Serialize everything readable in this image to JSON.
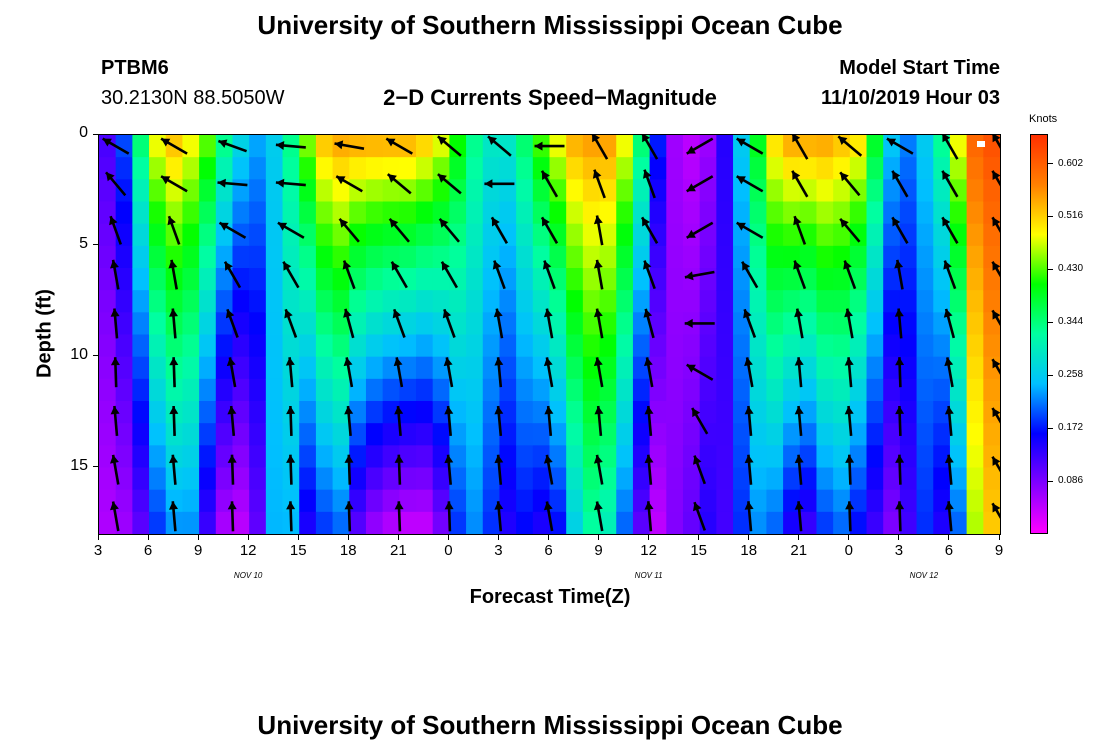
{
  "header": {
    "title": "University of Southern Mississippi Ocean Cube",
    "footer_title": "University of Southern Mississippi Ocean Cube",
    "station": "PTBM6",
    "location": "30.2130N 88.5050W",
    "subtitle": "2−D Currents Speed−Magnitude",
    "model_label": "Model Start Time",
    "model_time": "11/10/2019 Hour 03"
  },
  "chart_data": {
    "type": "heatmap",
    "title": "2−D Currents Speed−Magnitude",
    "xlabel": "Forecast Time(Z)",
    "ylabel": "Depth (ft)",
    "x_ticks": [
      "3",
      "6",
      "9",
      "12",
      "15",
      "18",
      "21",
      "0",
      "3",
      "6",
      "9",
      "12",
      "15",
      "18",
      "21",
      "0",
      "3",
      "6",
      "9"
    ],
    "x_tick_hours": [
      0,
      3,
      6,
      9,
      12,
      15,
      18,
      21,
      24,
      27,
      30,
      33,
      36,
      39,
      42,
      45,
      48,
      51,
      54
    ],
    "date_labels": [
      {
        "label": "NOV 10",
        "hour": 9
      },
      {
        "label": "NOV 11",
        "hour": 33
      },
      {
        "label": "NOV 12",
        "hour": 49.5
      }
    ],
    "xlim_hours": [
      0,
      54
    ],
    "y_ticks": [
      "0",
      "5",
      "10",
      "15"
    ],
    "y_tick_values": [
      0,
      5,
      10,
      15
    ],
    "ylim": [
      0,
      18
    ],
    "y_inverted": true,
    "colorbar": {
      "label": "Knots",
      "ticks": [
        "0.602",
        "0.516",
        "0.430",
        "0.344",
        "0.258",
        "0.172",
        "0.086"
      ],
      "tick_values": [
        0.602,
        0.516,
        0.43,
        0.344,
        0.258,
        0.172,
        0.086
      ],
      "range": [
        0.0,
        0.65
      ],
      "colormap": [
        "#ff00ff",
        "#8000ff",
        "#0000ff",
        "#00c0ff",
        "#00ffa0",
        "#00ff00",
        "#ffff00",
        "#ff8000",
        "#ff3000"
      ]
    },
    "speed_profile": {
      "hours": [
        0,
        1,
        2,
        3,
        4,
        5,
        6,
        7,
        8,
        9,
        10,
        11,
        12,
        13,
        14,
        15,
        16,
        17,
        18,
        19,
        20,
        21,
        22,
        23,
        24,
        25,
        26,
        27,
        28,
        29,
        30,
        31,
        32,
        33,
        34,
        35,
        36,
        37,
        38,
        39,
        40,
        41,
        42,
        43,
        44,
        45,
        46,
        47,
        48,
        49,
        50,
        51,
        52,
        53,
        54
      ],
      "surface": [
        0.12,
        0.2,
        0.36,
        0.5,
        0.54,
        0.5,
        0.45,
        0.35,
        0.28,
        0.24,
        0.26,
        0.34,
        0.46,
        0.54,
        0.56,
        0.56,
        0.56,
        0.56,
        0.56,
        0.54,
        0.5,
        0.42,
        0.34,
        0.3,
        0.3,
        0.36,
        0.44,
        0.5,
        0.55,
        0.56,
        0.56,
        0.5,
        0.36,
        0.18,
        0.06,
        0.04,
        0.06,
        0.14,
        0.26,
        0.4,
        0.52,
        0.56,
        0.56,
        0.56,
        0.54,
        0.52,
        0.4,
        0.26,
        0.22,
        0.26,
        0.34,
        0.5,
        0.6,
        0.62,
        0.62
      ],
      "bottom": [
        0.05,
        0.06,
        0.1,
        0.18,
        0.22,
        0.22,
        0.12,
        0.05,
        0.04,
        0.1,
        0.24,
        0.24,
        0.14,
        0.18,
        0.2,
        0.1,
        0.06,
        0.04,
        0.03,
        0.03,
        0.08,
        0.18,
        0.22,
        0.18,
        0.14,
        0.16,
        0.14,
        0.16,
        0.26,
        0.32,
        0.3,
        0.2,
        0.1,
        0.04,
        0.08,
        0.1,
        0.14,
        0.12,
        0.18,
        0.22,
        0.2,
        0.14,
        0.12,
        0.18,
        0.2,
        0.16,
        0.12,
        0.08,
        0.12,
        0.18,
        0.14,
        0.2,
        0.46,
        0.52,
        0.54
      ]
    },
    "vector_grid": {
      "hours": [
        1,
        4.5,
        8,
        11.5,
        15,
        18,
        21,
        24,
        27,
        30,
        33,
        36,
        39,
        42,
        45,
        48,
        51,
        54
      ],
      "depths": [
        0.5,
        2.2,
        4.3,
        6.3,
        8.5,
        10.7,
        12.9,
        15.1,
        17.2
      ],
      "direction_deg": [
        [
          300,
          300,
          290,
          275,
          280,
          300,
          310,
          310,
          270,
          330,
          330,
          240,
          300,
          330,
          310,
          300,
          330,
          330
        ],
        [
          320,
          300,
          275,
          275,
          300,
          310,
          310,
          270,
          330,
          340,
          340,
          240,
          300,
          330,
          320,
          330,
          330,
          330
        ],
        [
          340,
          340,
          300,
          300,
          320,
          320,
          320,
          330,
          330,
          350,
          330,
          240,
          300,
          340,
          320,
          330,
          330,
          330
        ],
        [
          350,
          350,
          330,
          330,
          340,
          330,
          330,
          340,
          340,
          350,
          340,
          260,
          330,
          340,
          340,
          350,
          340,
          330
        ],
        [
          355,
          355,
          340,
          340,
          345,
          340,
          340,
          350,
          350,
          350,
          345,
          270,
          340,
          350,
          350,
          355,
          345,
          330
        ],
        [
          358,
          358,
          350,
          355,
          350,
          350,
          350,
          355,
          350,
          350,
          350,
          300,
          350,
          355,
          355,
          358,
          350,
          330
        ],
        [
          355,
          358,
          355,
          358,
          355,
          355,
          355,
          355,
          355,
          355,
          355,
          330,
          355,
          355,
          355,
          358,
          355,
          330
        ],
        [
          350,
          355,
          358,
          358,
          358,
          358,
          355,
          355,
          350,
          350,
          355,
          340,
          355,
          355,
          358,
          358,
          355,
          330
        ],
        [
          350,
          355,
          358,
          358,
          358,
          358,
          358,
          355,
          350,
          350,
          355,
          340,
          355,
          355,
          358,
          358,
          355,
          330
        ]
      ]
    }
  }
}
